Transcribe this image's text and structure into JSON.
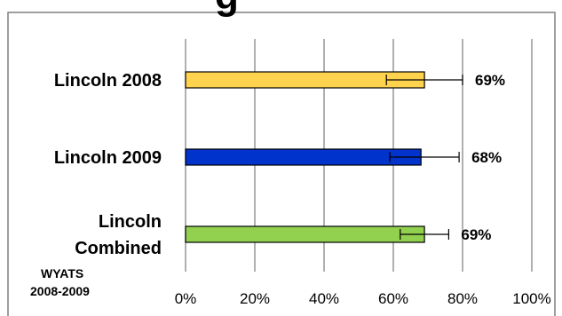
{
  "chart_data": {
    "type": "bar",
    "orientation": "horizontal",
    "title_fragment": "g",
    "categories": [
      [
        "Lincoln 2008"
      ],
      [
        "Lincoln 2009"
      ],
      [
        "Lincoln",
        "Combined"
      ]
    ],
    "values": [
      69,
      68,
      69
    ],
    "data_labels": [
      "69%",
      "68%",
      "69%"
    ],
    "error_bars": [
      {
        "low": 58,
        "high": 80
      },
      {
        "low": 59,
        "high": 79
      },
      {
        "low": 62,
        "high": 76
      }
    ],
    "bar_colors": [
      "#FFD34E",
      "#0033CC",
      "#92D050"
    ],
    "xlim": [
      0,
      100
    ],
    "x_ticks": [
      0,
      20,
      40,
      60,
      80,
      100
    ],
    "x_tick_labels": [
      "0%",
      "20%",
      "40%",
      "60%",
      "80%",
      "100%"
    ],
    "grid": true,
    "legend": "none"
  },
  "footnote": {
    "line1": "WYATS",
    "line2": "2008-2009"
  }
}
